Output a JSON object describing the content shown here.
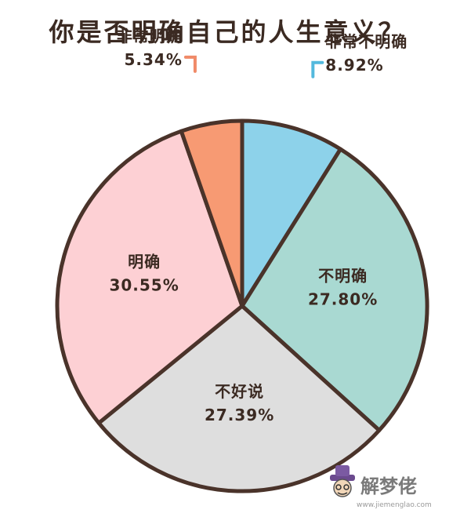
{
  "chart_data": {
    "type": "pie",
    "title": "你是否明确自己的人生意义？",
    "slices": [
      {
        "label": "非常不明确",
        "value": 8.92,
        "display": "8.92%",
        "color": "#8dd2ea",
        "outside": true,
        "marker": "#53b9dd"
      },
      {
        "label": "不明确",
        "value": 27.8,
        "display": "27.80%",
        "color": "#a9d9d2"
      },
      {
        "label": "不好说",
        "value": 27.39,
        "display": "27.39%",
        "color": "#dedede"
      },
      {
        "label": "明确",
        "value": 30.55,
        "display": "30.55%",
        "color": "#fdd0d4"
      },
      {
        "label": "非常明确",
        "value": 5.34,
        "display": "5.34%",
        "color": "#f79a73",
        "outside": true,
        "marker": "#f08a68"
      }
    ],
    "outline_color": "#4a332a"
  },
  "watermark": {
    "brand": "解梦佬",
    "url": "www.jiemenglao.com"
  }
}
